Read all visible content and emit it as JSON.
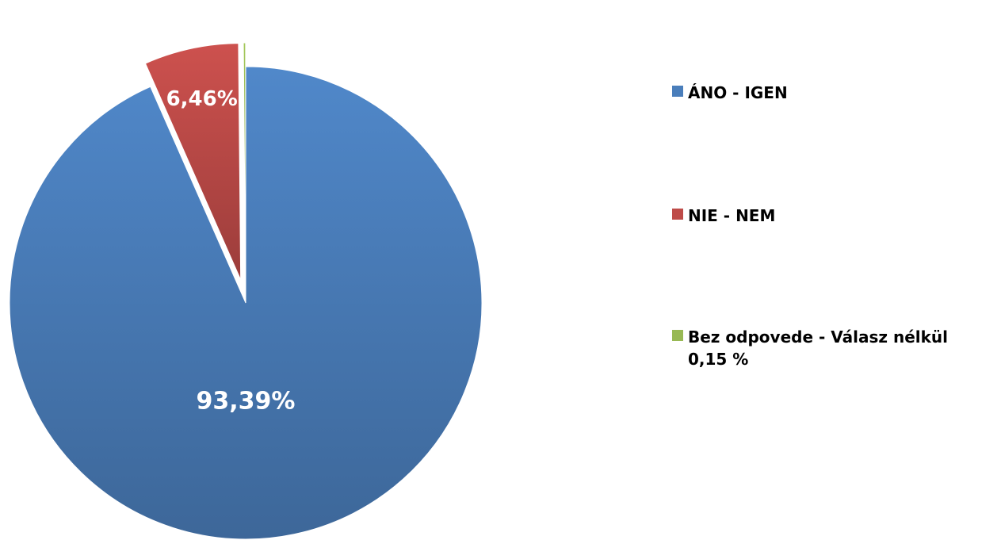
{
  "chart_data": {
    "type": "pie",
    "title": "",
    "slices": [
      {
        "label": "ÁNO - IGEN",
        "value": 93.39,
        "data_label": "93,39%",
        "color": "#4a7ebb",
        "exploded": false
      },
      {
        "label": "NIE - NEM",
        "value": 6.46,
        "data_label": "6,46%",
        "color": "#be4b48",
        "exploded": true
      },
      {
        "label": "Bez odpovede - Válasz nélkül",
        "value": 0.15,
        "data_label": "0,15 %",
        "color": "#98b954",
        "exploded": true
      }
    ],
    "legend_position": "right"
  }
}
